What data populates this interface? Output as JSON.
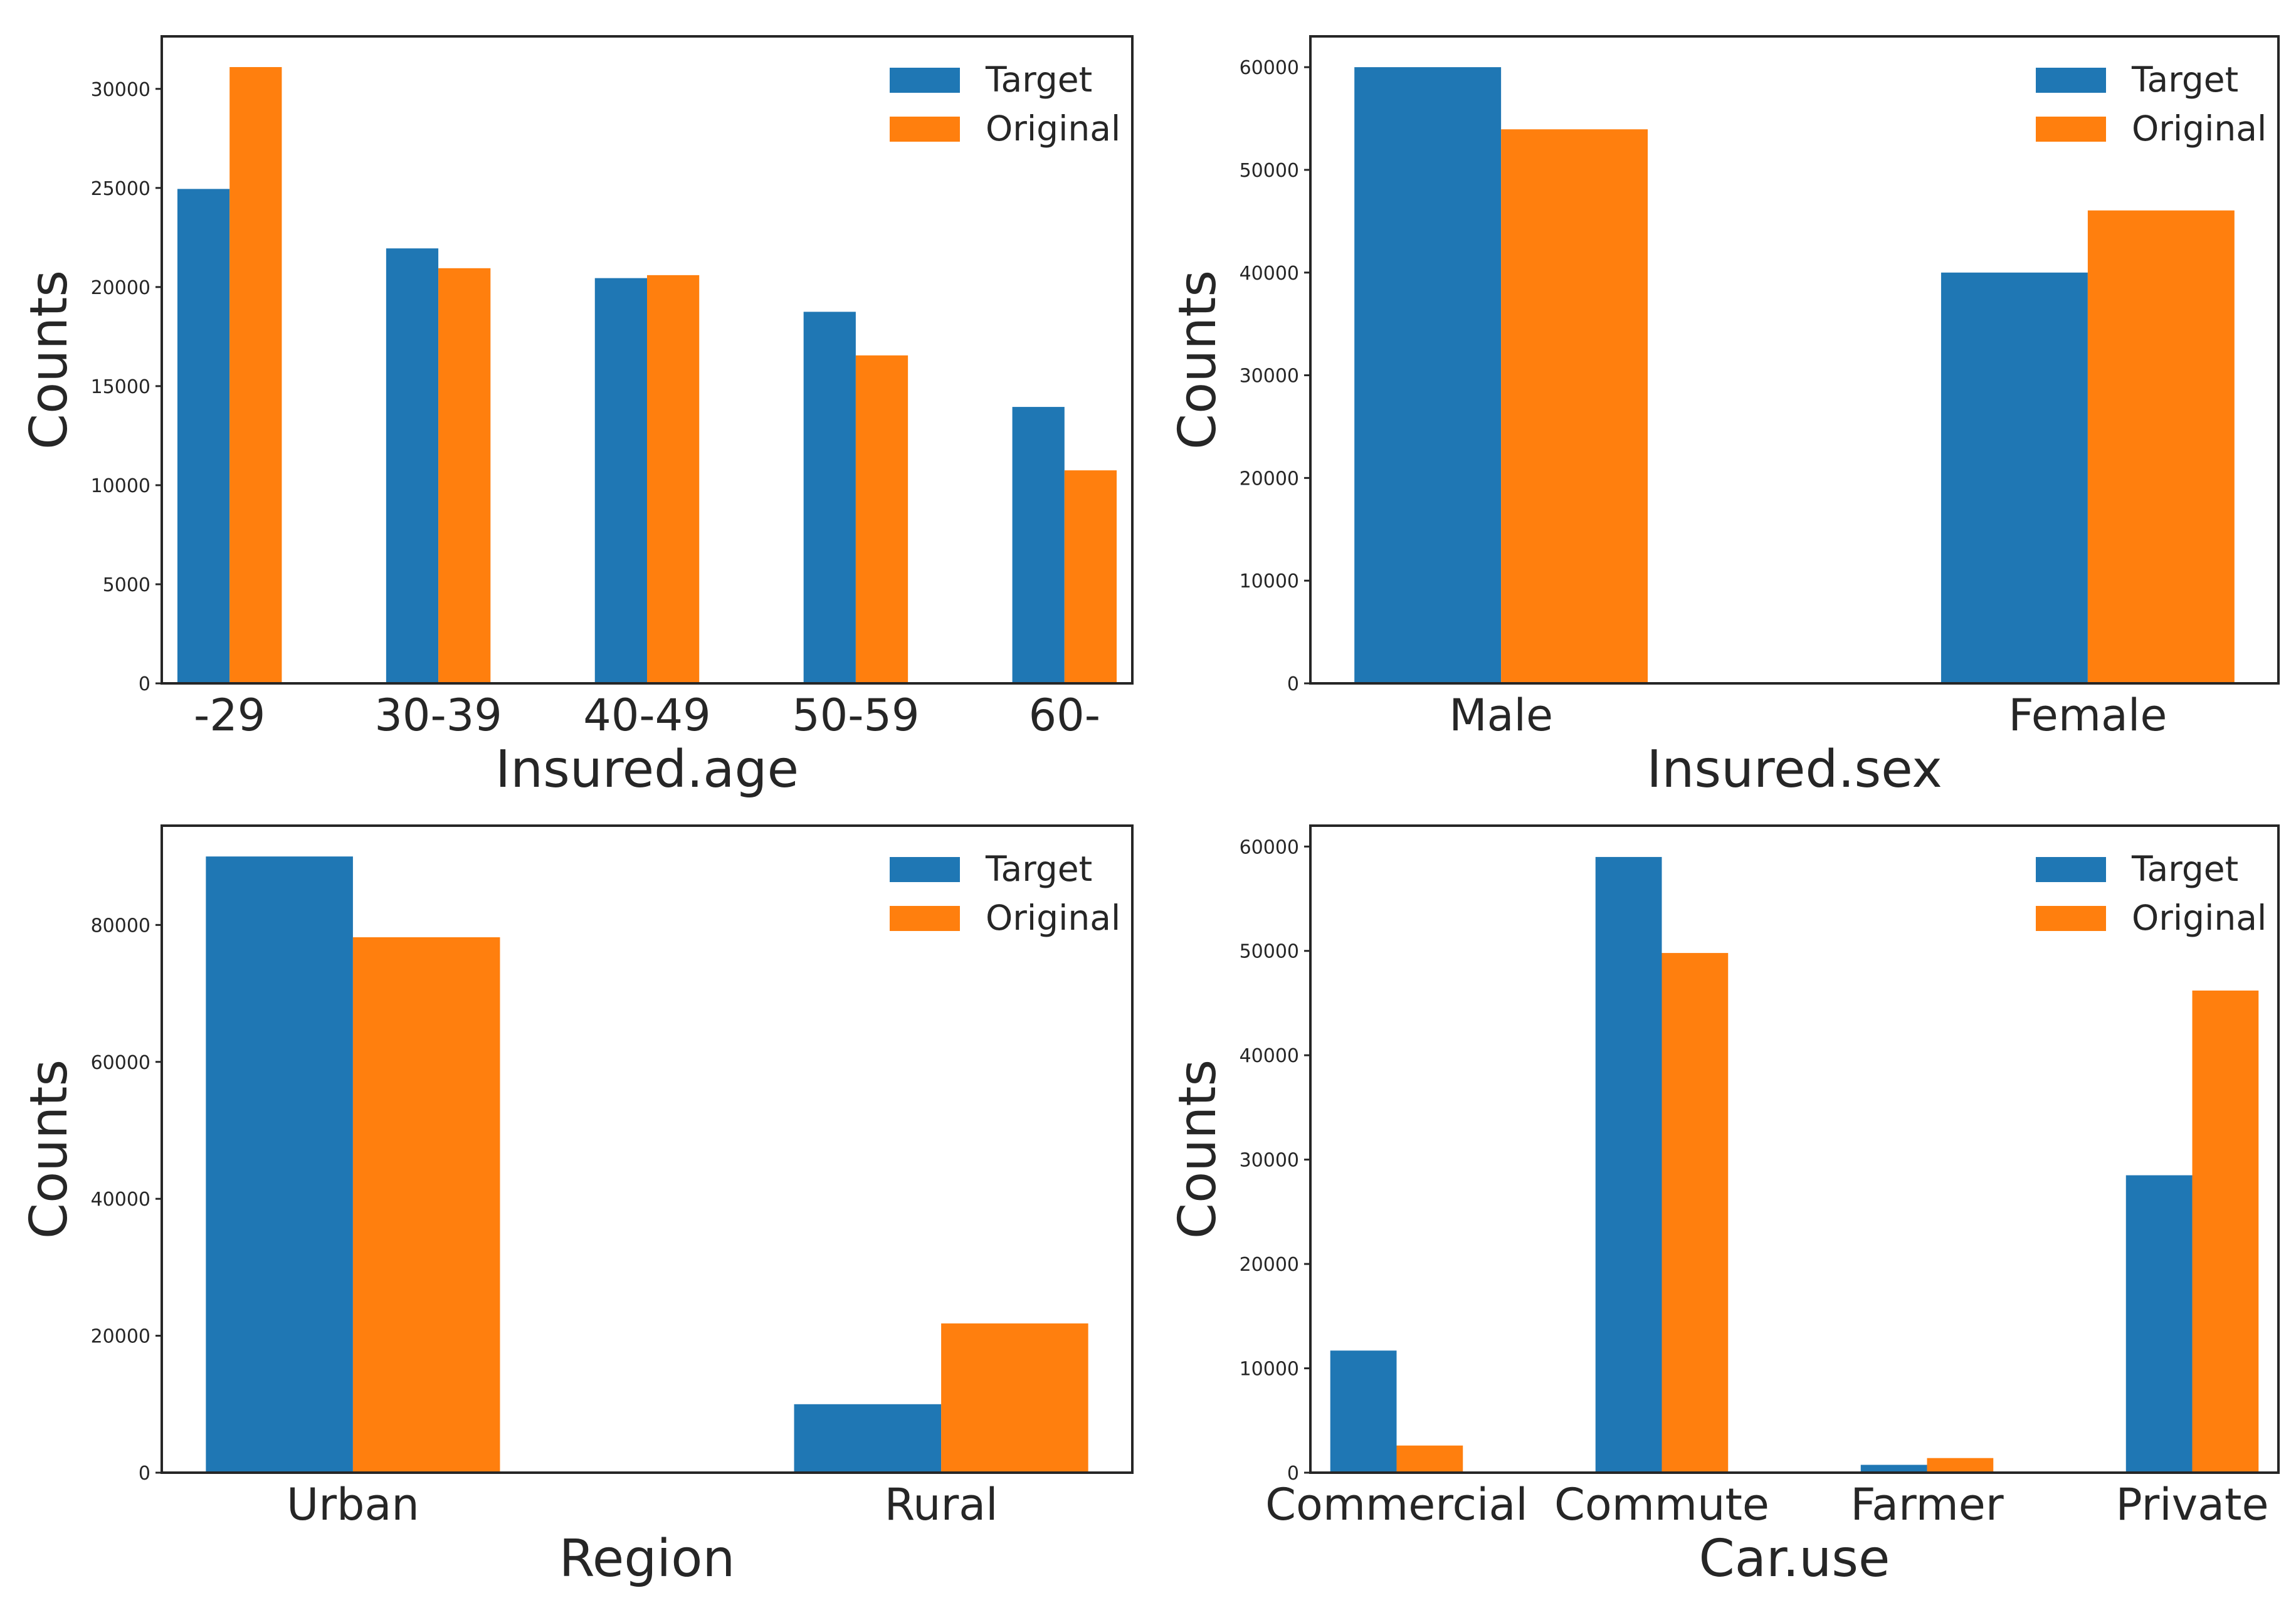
{
  "colors": {
    "target": "#1f77b4",
    "original": "#ff7f0e",
    "axis": "#262626",
    "background": "#ffffff"
  },
  "legend": {
    "target": "Target",
    "original": "Original",
    "placement": "top-right"
  },
  "ylabel": "Counts",
  "chart_data": [
    {
      "type": "bar",
      "xlabel": "Insured.age",
      "ylabel": "Counts",
      "categories": [
        "-29",
        "30-39",
        "40-49",
        "50-59",
        "60-"
      ],
      "series": [
        {
          "name": "Target",
          "values": [
            24950,
            21950,
            20450,
            18750,
            13950
          ]
        },
        {
          "name": "Original",
          "values": [
            31100,
            20950,
            20600,
            16550,
            10750
          ]
        }
      ],
      "ylim": [
        0,
        32650
      ],
      "yticks": [
        0,
        5000,
        10000,
        15000,
        20000,
        25000,
        30000
      ],
      "grid": false
    },
    {
      "type": "bar",
      "xlabel": "Insured.sex",
      "ylabel": "Counts",
      "categories": [
        "Male",
        "Female"
      ],
      "series": [
        {
          "name": "Target",
          "values": [
            60000,
            40000
          ]
        },
        {
          "name": "Original",
          "values": [
            53950,
            46050
          ]
        }
      ],
      "ylim": [
        0,
        63000
      ],
      "yticks": [
        0,
        10000,
        20000,
        30000,
        40000,
        50000,
        60000
      ],
      "grid": false
    },
    {
      "type": "bar",
      "xlabel": "Region",
      "ylabel": "Counts",
      "categories": [
        "Urban",
        "Rural"
      ],
      "series": [
        {
          "name": "Target",
          "values": [
            90000,
            10000
          ]
        },
        {
          "name": "Original",
          "values": [
            78200,
            21800
          ]
        }
      ],
      "ylim": [
        0,
        94500
      ],
      "yticks": [
        0,
        20000,
        40000,
        60000,
        80000
      ],
      "grid": false
    },
    {
      "type": "bar",
      "xlabel": "Car.use",
      "ylabel": "Counts",
      "categories": [
        "Commercial",
        "Commute",
        "Farmer",
        "Private"
      ],
      "series": [
        {
          "name": "Target",
          "values": [
            11700,
            59000,
            750,
            28500
          ]
        },
        {
          "name": "Original",
          "values": [
            2600,
            49800,
            1400,
            46200
          ]
        }
      ],
      "ylim": [
        0,
        62000
      ],
      "yticks": [
        0,
        10000,
        20000,
        30000,
        40000,
        50000,
        60000
      ],
      "grid": false
    }
  ]
}
